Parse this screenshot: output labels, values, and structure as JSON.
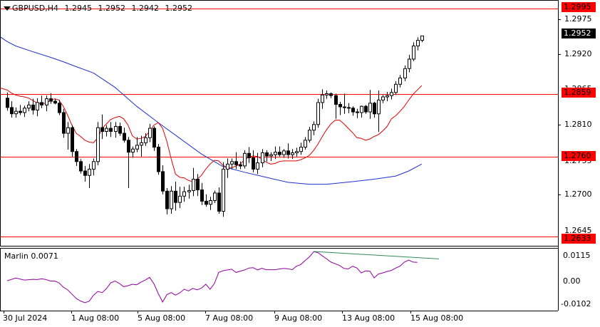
{
  "chart_header": {
    "symbol": "GBPUSD,H4",
    "open": "1.2945",
    "high": "1.2952",
    "low": "1.2942",
    "close": "1.2952"
  },
  "indicator": {
    "name": "Marlin",
    "value": "0.0071",
    "axis_labels": [
      "0.0115",
      "0.00",
      "-0.0102"
    ]
  },
  "price_axis": {
    "labels": [
      "1.2975",
      "1.2920",
      "1.2865",
      "1.2810",
      "1.2755",
      "1.2700",
      "1.2645"
    ],
    "current_price": "1.2952",
    "levels": [
      "1.2995",
      "1.2859",
      "1.2760",
      "1.2633"
    ]
  },
  "time_axis": {
    "labels": [
      "30 Jul 2024",
      "1 Aug 08:00",
      "5 Aug 08:00",
      "7 Aug 08:00",
      "9 Aug 08:00",
      "13 Aug 08:00",
      "15 Aug 08:00"
    ]
  },
  "colors": {
    "bull_candle": "#ffffff",
    "bear_candle": "#000000",
    "level_line": "#ff0000",
    "ma_fast": "#e00000",
    "ma_slow": "#1f2fd0",
    "oscillator": "#9400a0",
    "divergence_line": "#2e8b57"
  },
  "chart_data": {
    "type": "candlestick",
    "symbol": "GBPUSD",
    "timeframe": "H4",
    "ylim": [
      1.2618,
      1.3008
    ],
    "horizontal_levels": [
      1.2995,
      1.2859,
      1.276,
      1.2633
    ],
    "candles": [
      [
        1.2853,
        1.2862,
        1.2833,
        1.2838
      ],
      [
        1.2838,
        1.2848,
        1.2822,
        1.2828
      ],
      [
        1.2828,
        1.2838,
        1.2822,
        1.2832
      ],
      [
        1.2832,
        1.2842,
        1.2826,
        1.283
      ],
      [
        1.283,
        1.2841,
        1.2823,
        1.2837
      ],
      [
        1.2837,
        1.2848,
        1.2832,
        1.2842
      ],
      [
        1.2842,
        1.2852,
        1.2827,
        1.2834
      ],
      [
        1.2834,
        1.2853,
        1.2824,
        1.2846
      ],
      [
        1.2846,
        1.2857,
        1.2837,
        1.2842
      ],
      [
        1.2842,
        1.2857,
        1.2832,
        1.2852
      ],
      [
        1.2852,
        1.2861,
        1.2844,
        1.2848
      ],
      [
        1.2848,
        1.2852,
        1.2843,
        1.2845
      ],
      [
        1.2845,
        1.285,
        1.2826,
        1.283
      ],
      [
        1.283,
        1.2836,
        1.279,
        1.2797
      ],
      [
        1.2797,
        1.2815,
        1.2771,
        1.2806
      ],
      [
        1.2806,
        1.281,
        1.276,
        1.2768
      ],
      [
        1.2768,
        1.2772,
        1.2745,
        1.2752
      ],
      [
        1.2752,
        1.2756,
        1.2733,
        1.2737
      ],
      [
        1.2737,
        1.2745,
        1.272,
        1.273
      ],
      [
        1.273,
        1.2748,
        1.271,
        1.274
      ],
      [
        1.274,
        1.2757,
        1.273,
        1.2752
      ],
      [
        1.2752,
        1.2815,
        1.2746,
        1.2806
      ],
      [
        1.2806,
        1.2827,
        1.2788,
        1.28
      ],
      [
        1.28,
        1.281,
        1.2792,
        1.2805
      ],
      [
        1.2805,
        1.2815,
        1.2791,
        1.28
      ],
      [
        1.28,
        1.2815,
        1.279,
        1.2808
      ],
      [
        1.2808,
        1.2814,
        1.2793,
        1.2797
      ],
      [
        1.2797,
        1.2806,
        1.2782,
        1.2786
      ],
      [
        1.2786,
        1.2791,
        1.271,
        1.2767
      ],
      [
        1.2767,
        1.2776,
        1.2758,
        1.2772
      ],
      [
        1.2772,
        1.2791,
        1.2767,
        1.2778
      ],
      [
        1.2778,
        1.2793,
        1.276,
        1.2782
      ],
      [
        1.2782,
        1.2797,
        1.2777,
        1.279
      ],
      [
        1.279,
        1.2812,
        1.2783,
        1.2805
      ],
      [
        1.2805,
        1.2808,
        1.2769,
        1.2775
      ],
      [
        1.2775,
        1.278,
        1.2731,
        1.2736
      ],
      [
        1.2736,
        1.2746,
        1.27,
        1.2705
      ],
      [
        1.2705,
        1.271,
        1.2668,
        1.2677
      ],
      [
        1.2677,
        1.2713,
        1.2669,
        1.2705
      ],
      [
        1.2705,
        1.272,
        1.2674,
        1.2687
      ],
      [
        1.2687,
        1.2712,
        1.2678,
        1.2697
      ],
      [
        1.2697,
        1.2712,
        1.2688,
        1.2704
      ],
      [
        1.2704,
        1.2715,
        1.2693,
        1.2706
      ],
      [
        1.2706,
        1.2742,
        1.2697,
        1.2724
      ],
      [
        1.2724,
        1.2732,
        1.2697,
        1.2707
      ],
      [
        1.2707,
        1.2718,
        1.2683,
        1.2689
      ],
      [
        1.2689,
        1.27,
        1.268,
        1.2684
      ],
      [
        1.2684,
        1.2696,
        1.2675,
        1.269
      ],
      [
        1.269,
        1.2706,
        1.2686,
        1.2702
      ],
      [
        1.2702,
        1.2711,
        1.2669,
        1.2673
      ],
      [
        1.2673,
        1.2751,
        1.2664,
        1.274
      ],
      [
        1.274,
        1.2757,
        1.2726,
        1.2748
      ],
      [
        1.2748,
        1.2757,
        1.274,
        1.2752
      ],
      [
        1.2752,
        1.2767,
        1.274,
        1.2747
      ],
      [
        1.2747,
        1.2752,
        1.274,
        1.2745
      ],
      [
        1.2745,
        1.277,
        1.2741,
        1.2765
      ],
      [
        1.2765,
        1.2775,
        1.275,
        1.2758
      ],
      [
        1.2758,
        1.277,
        1.2735,
        1.274
      ],
      [
        1.274,
        1.2766,
        1.2732,
        1.275
      ],
      [
        1.275,
        1.2772,
        1.2743,
        1.2766
      ],
      [
        1.2766,
        1.277,
        1.2752,
        1.2761
      ],
      [
        1.2761,
        1.2767,
        1.2753,
        1.2763
      ],
      [
        1.2763,
        1.2776,
        1.2756,
        1.2767
      ],
      [
        1.2767,
        1.2776,
        1.276,
        1.2763
      ],
      [
        1.2763,
        1.2772,
        1.2758,
        1.2769
      ],
      [
        1.2769,
        1.2781,
        1.2757,
        1.2763
      ],
      [
        1.2763,
        1.2772,
        1.2756,
        1.2766
      ],
      [
        1.2766,
        1.2774,
        1.276,
        1.2768
      ],
      [
        1.2768,
        1.2782,
        1.2763,
        1.2775
      ],
      [
        1.2775,
        1.2791,
        1.2771,
        1.2786
      ],
      [
        1.2786,
        1.2807,
        1.2782,
        1.2802
      ],
      [
        1.2802,
        1.2816,
        1.2794,
        1.2811
      ],
      [
        1.2811,
        1.2852,
        1.2806,
        1.2846
      ],
      [
        1.2846,
        1.2867,
        1.2836,
        1.2858
      ],
      [
        1.2858,
        1.2865,
        1.2852,
        1.286
      ],
      [
        1.286,
        1.2862,
        1.2853,
        1.2857
      ],
      [
        1.2857,
        1.286,
        1.282,
        1.2843
      ],
      [
        1.2843,
        1.2847,
        1.2826,
        1.2839
      ],
      [
        1.2839,
        1.286,
        1.2828,
        1.2838
      ],
      [
        1.2838,
        1.2845,
        1.2829,
        1.2837
      ],
      [
        1.2837,
        1.284,
        1.2825,
        1.2831
      ],
      [
        1.2831,
        1.2836,
        1.2821,
        1.283
      ],
      [
        1.283,
        1.2841,
        1.2822,
        1.284
      ],
      [
        1.284,
        1.2842,
        1.2828,
        1.2831
      ],
      [
        1.2831,
        1.2866,
        1.282,
        1.2845
      ],
      [
        1.2845,
        1.2847,
        1.2822,
        1.2828
      ],
      [
        1.2828,
        1.2865,
        1.2799,
        1.285
      ],
      [
        1.285,
        1.2858,
        1.2845,
        1.2855
      ],
      [
        1.2855,
        1.2863,
        1.2848,
        1.2857
      ],
      [
        1.2857,
        1.2868,
        1.2851,
        1.2862
      ],
      [
        1.2862,
        1.288,
        1.2858,
        1.2875
      ],
      [
        1.2875,
        1.289,
        1.287,
        1.2885
      ],
      [
        1.2885,
        1.2905,
        1.288,
        1.29
      ],
      [
        1.29,
        1.2922,
        1.2894,
        1.2915
      ],
      [
        1.2915,
        1.2942,
        1.2912,
        1.2936
      ],
      [
        1.2936,
        1.295,
        1.2929,
        1.2945
      ],
      [
        1.2945,
        1.2952,
        1.2942,
        1.2952
      ]
    ],
    "ma_fast": [
      [
        0,
        1.2866
      ],
      [
        1,
        1.2861
      ],
      [
        2,
        1.2858
      ],
      [
        3,
        1.2856
      ],
      [
        4,
        1.2855
      ],
      [
        5,
        1.2853
      ],
      [
        6,
        1.2849
      ],
      [
        7,
        1.2845
      ],
      [
        8,
        1.2844
      ],
      [
        9,
        1.2845
      ],
      [
        10,
        1.2849
      ],
      [
        11,
        1.2852
      ],
      [
        12,
        1.285
      ],
      [
        13,
        1.284
      ],
      [
        14,
        1.2826
      ],
      [
        15,
        1.281
      ],
      [
        16,
        1.2797
      ],
      [
        17,
        1.2792
      ],
      [
        18,
        1.2786
      ],
      [
        19,
        1.2783
      ],
      [
        20,
        1.2782
      ],
      [
        21,
        1.279
      ],
      [
        22,
        1.2805
      ],
      [
        23,
        1.2812
      ],
      [
        24,
        1.2819
      ],
      [
        25,
        1.2822
      ],
      [
        26,
        1.2824
      ],
      [
        27,
        1.282
      ],
      [
        28,
        1.281
      ],
      [
        29,
        1.2793
      ],
      [
        30,
        1.2788
      ],
      [
        31,
        1.2789
      ],
      [
        32,
        1.2792
      ],
      [
        33,
        1.28
      ],
      [
        34,
        1.281
      ],
      [
        35,
        1.2814
      ],
      [
        36,
        1.2805
      ],
      [
        37,
        1.2784
      ],
      [
        38,
        1.2756
      ],
      [
        39,
        1.2732
      ],
      [
        40,
        1.2727
      ],
      [
        41,
        1.2726
      ],
      [
        42,
        1.2722
      ],
      [
        43,
        1.272
      ],
      [
        44,
        1.2724
      ],
      [
        45,
        1.273
      ],
      [
        46,
        1.274
      ],
      [
        47,
        1.2748
      ],
      [
        48,
        1.2754
      ],
      [
        49,
        1.2753
      ],
      [
        50,
        1.2746
      ],
      [
        51,
        1.2742
      ],
      [
        52,
        1.2742
      ],
      [
        53,
        1.2745
      ],
      [
        54,
        1.2748
      ],
      [
        55,
        1.2755
      ],
      [
        56,
        1.2759
      ],
      [
        57,
        1.2761
      ],
      [
        58,
        1.276
      ],
      [
        59,
        1.2756
      ],
      [
        60,
        1.2751
      ],
      [
        61,
        1.2748
      ],
      [
        62,
        1.2749
      ],
      [
        63,
        1.2752
      ],
      [
        64,
        1.2753
      ],
      [
        65,
        1.2753
      ],
      [
        66,
        1.2753
      ],
      [
        67,
        1.2753
      ],
      [
        68,
        1.2755
      ],
      [
        69,
        1.2758
      ],
      [
        70,
        1.2762
      ],
      [
        71,
        1.277
      ],
      [
        72,
        1.278
      ],
      [
        73,
        1.2792
      ],
      [
        74,
        1.2803
      ],
      [
        75,
        1.2812
      ],
      [
        76,
        1.2818
      ],
      [
        77,
        1.2818
      ],
      [
        78,
        1.2812
      ],
      [
        79,
        1.2805
      ],
      [
        80,
        1.2798
      ],
      [
        81,
        1.279
      ],
      [
        82,
        1.2789
      ],
      [
        83,
        1.2786
      ],
      [
        84,
        1.2788
      ],
      [
        85,
        1.2792
      ],
      [
        86,
        1.2795
      ],
      [
        87,
        1.2801
      ],
      [
        88,
        1.2808
      ],
      [
        89,
        1.282
      ],
      [
        90,
        1.2825
      ],
      [
        91,
        1.2832
      ],
      [
        92,
        1.284
      ],
      [
        93,
        1.285
      ],
      [
        94,
        1.2859
      ],
      [
        95,
        1.2866
      ],
      [
        96,
        1.2873
      ]
    ],
    "ma_slow": [
      [
        0,
        1.2943
      ],
      [
        2,
        1.2936
      ],
      [
        5,
        1.2929
      ],
      [
        10,
        1.2918
      ],
      [
        13,
        1.2911
      ],
      [
        16,
        1.2903
      ],
      [
        20,
        1.2893
      ],
      [
        25,
        1.287
      ],
      [
        30,
        1.284
      ],
      [
        35,
        1.2814
      ],
      [
        40,
        1.2789
      ],
      [
        45,
        1.2764
      ],
      [
        50,
        1.2744
      ],
      [
        55,
        1.2735
      ],
      [
        60,
        1.2727
      ],
      [
        65,
        1.2719
      ],
      [
        70,
        1.2716
      ],
      [
        74,
        1.2716
      ],
      [
        80,
        1.272
      ],
      [
        85,
        1.2724
      ],
      [
        90,
        1.2729
      ],
      [
        93,
        1.2737
      ],
      [
        96,
        1.2748
      ]
    ],
    "oscillator": {
      "name": "Marlin",
      "value": 0.0071,
      "ylim": [
        -0.0102,
        0.0115
      ],
      "values": [
        [
          0,
          -0.0004
        ],
        [
          2,
          0.0007
        ],
        [
          4,
          -0.0001
        ],
        [
          6,
          0.0002
        ],
        [
          7,
          0.0001
        ],
        [
          8,
          0.0004
        ],
        [
          9,
          0.0001
        ],
        [
          10,
          -0.0005
        ],
        [
          11,
          -0.0005
        ],
        [
          12,
          -0.0012
        ],
        [
          13,
          -0.003
        ],
        [
          14,
          -0.004
        ],
        [
          15,
          -0.0058
        ],
        [
          16,
          -0.0076
        ],
        [
          17,
          -0.0086
        ],
        [
          18,
          -0.0093
        ],
        [
          19,
          -0.0087
        ],
        [
          20,
          -0.0063
        ],
        [
          21,
          -0.0047
        ],
        [
          22,
          -0.0052
        ],
        [
          23,
          -0.0036
        ],
        [
          24,
          -0.0012
        ],
        [
          25,
          -0.0005
        ],
        [
          26,
          -0.0015
        ],
        [
          27,
          -0.0028
        ],
        [
          28,
          -0.0024
        ],
        [
          29,
          -0.0018
        ],
        [
          30,
          -0.002
        ],
        [
          31,
          -0.0009
        ],
        [
          32,
          -0.0001
        ],
        [
          33,
          0.001
        ],
        [
          34,
          -0.0016
        ],
        [
          35,
          -0.0056
        ],
        [
          36,
          -0.009
        ],
        [
          37,
          -0.006
        ],
        [
          38,
          -0.0052
        ],
        [
          39,
          -0.0062
        ],
        [
          40,
          -0.0053
        ],
        [
          41,
          -0.0038
        ],
        [
          42,
          -0.0045
        ],
        [
          43,
          -0.0035
        ],
        [
          44,
          -0.0041
        ],
        [
          45,
          -0.0034
        ],
        [
          46,
          -0.0018
        ],
        [
          47,
          -0.0038
        ],
        [
          48,
          -0.0015
        ],
        [
          49,
          0.003
        ],
        [
          50,
          0.0037
        ],
        [
          52,
          0.0043
        ],
        [
          53,
          0.003
        ],
        [
          55,
          0.004
        ],
        [
          56,
          0.0048
        ],
        [
          57,
          0.0049
        ],
        [
          58,
          0.004
        ],
        [
          59,
          0.0047
        ],
        [
          60,
          0.0041
        ],
        [
          62,
          0.0041
        ],
        [
          64,
          0.0046
        ],
        [
          65,
          0.0045
        ],
        [
          66,
          0.0041
        ],
        [
          67,
          0.0055
        ],
        [
          68,
          0.0062
        ],
        [
          69,
          0.0078
        ],
        [
          70,
          0.0093
        ],
        [
          71,
          0.0114
        ],
        [
          72,
          0.011
        ],
        [
          73,
          0.0097
        ],
        [
          74,
          0.0085
        ],
        [
          75,
          0.0072
        ],
        [
          76,
          0.0065
        ],
        [
          77,
          0.0058
        ],
        [
          78,
          0.0046
        ],
        [
          79,
          0.0044
        ],
        [
          80,
          0.0055
        ],
        [
          81,
          0.0048
        ],
        [
          82,
          0.0028
        ],
        [
          83,
          0.0036
        ],
        [
          84,
          0.0035
        ],
        [
          85,
          0.0008
        ],
        [
          86,
          0.0024
        ],
        [
          87,
          0.0028
        ],
        [
          88,
          0.0034
        ],
        [
          89,
          0.0038
        ],
        [
          90,
          0.0048
        ],
        [
          91,
          0.0056
        ],
        [
          92,
          0.0072
        ],
        [
          93,
          0.008
        ],
        [
          94,
          0.0072
        ],
        [
          95,
          0.0071
        ]
      ],
      "divergence_line": [
        [
          71,
          0.0115
        ],
        [
          100,
          0.0085
        ]
      ]
    }
  }
}
